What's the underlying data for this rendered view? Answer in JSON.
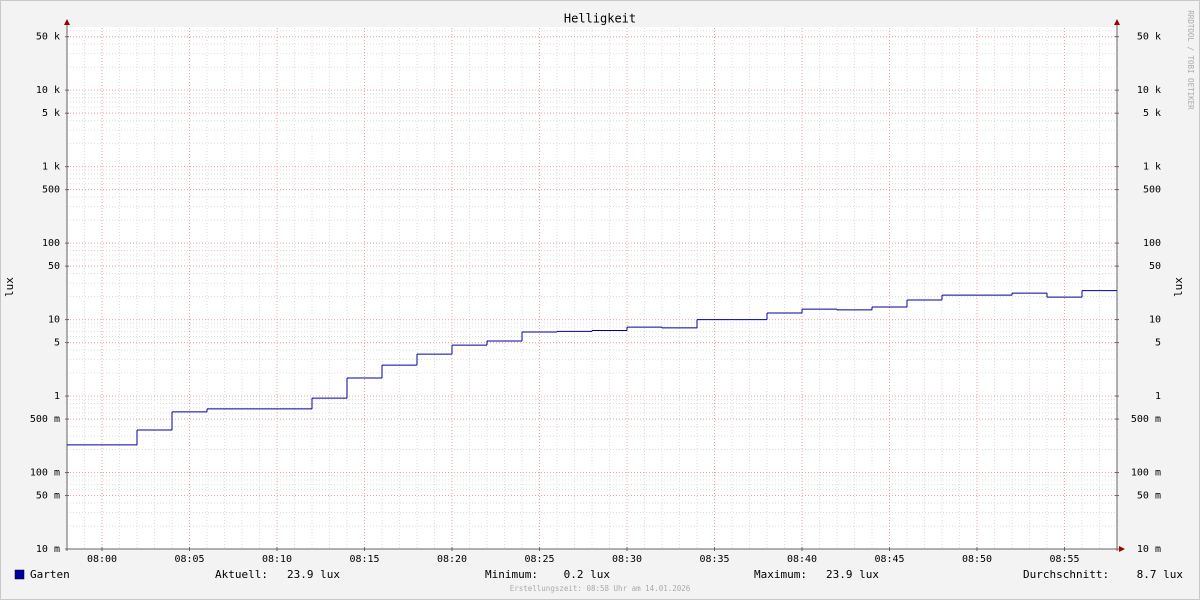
{
  "chart_data": {
    "type": "line",
    "step": "post",
    "title": "Helligkeit",
    "y_label": "lux",
    "y2_label": "lux",
    "log_y": true,
    "grid": true,
    "x": [
      "07:58",
      "08:02",
      "08:04",
      "08:06",
      "08:12",
      "08:14",
      "08:16",
      "08:18",
      "08:20",
      "08:22",
      "08:24",
      "08:26",
      "08:28",
      "08:30",
      "08:32",
      "08:34",
      "08:38",
      "08:40",
      "08:42",
      "08:44",
      "08:46",
      "08:48",
      "08:52",
      "08:54",
      "08:56"
    ],
    "xlim": [
      "07:58",
      "08:58"
    ],
    "xticks": [
      "08:00",
      "08:05",
      "08:10",
      "08:15",
      "08:20",
      "08:25",
      "08:30",
      "08:35",
      "08:40",
      "08:45",
      "08:50",
      "08:55"
    ],
    "ylim": [
      0.01,
      65000
    ],
    "yticks": [
      {
        "value": 0.01,
        "label": "10 m"
      },
      {
        "value": 0.05,
        "label": "50 m"
      },
      {
        "value": 0.1,
        "label": "100 m"
      },
      {
        "value": 0.5,
        "label": "500 m"
      },
      1,
      5,
      10,
      50,
      100,
      500,
      {
        "value": 1000,
        "label": "1 k"
      },
      {
        "value": 5000,
        "label": "5 k"
      },
      {
        "value": 10000,
        "label": "10 k"
      },
      {
        "value": 50000,
        "label": "50 k"
      }
    ],
    "series": [
      {
        "name": "Garten",
        "color": "#0000a0",
        "values": [
          0.23,
          0.36,
          0.62,
          0.68,
          0.94,
          1.72,
          2.54,
          3.54,
          4.64,
          5.24,
          6.87,
          7.0,
          7.2,
          7.98,
          7.8,
          10,
          12.2,
          13.7,
          13.4,
          14.6,
          18.0,
          20.9,
          22.2,
          19.7,
          23.9
        ]
      }
    ],
    "summary": [
      {
        "label": "Aktuell:",
        "value": "23.9 lux"
      },
      {
        "label": "Minimum:",
        "value": "0.2 lux"
      },
      {
        "label": "Maximum:",
        "value": "23.9 lux"
      },
      {
        "label": "Durchschnitt:",
        "value": "8.7 lux"
      }
    ],
    "footer": "Erstellungszeit: 08:58 Uhr am 14.01.2026",
    "watermark": "RRDTOOL / TOBI OETIKER"
  }
}
